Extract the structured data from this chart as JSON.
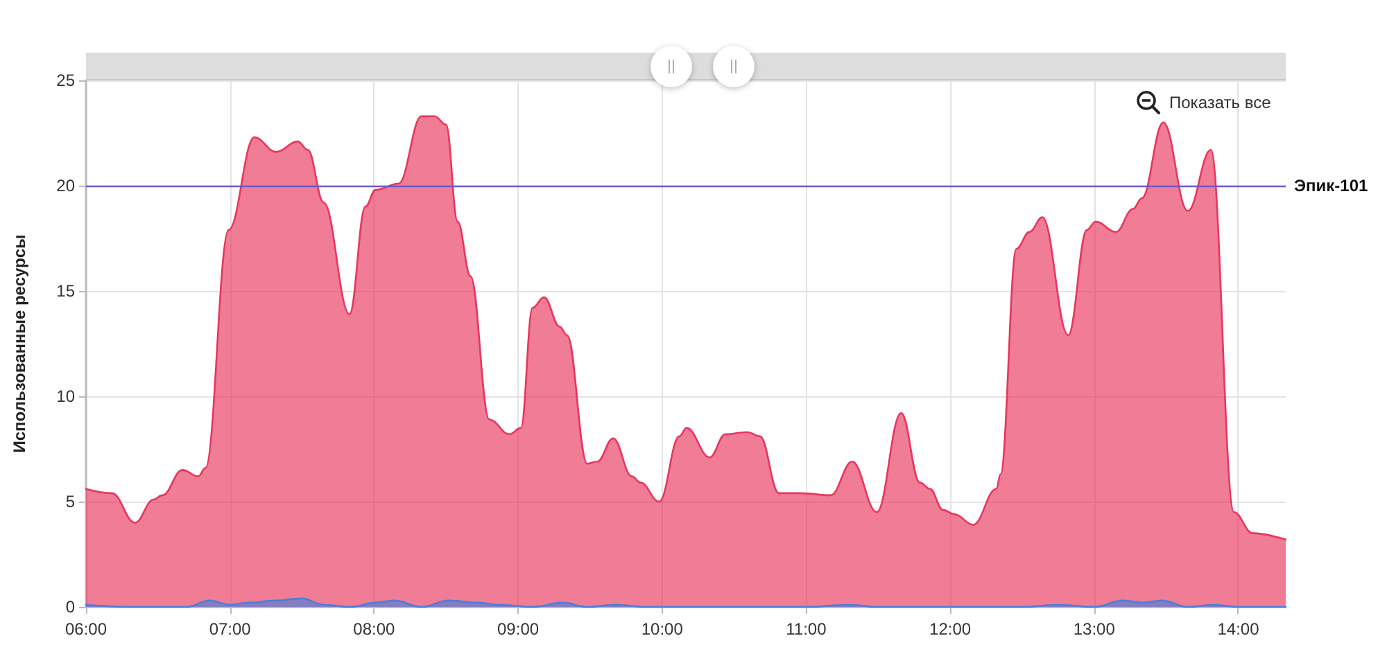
{
  "chart_data": {
    "type": "area",
    "ylabel": "Использованные ресурсы",
    "annotations": [
      "Показать все"
    ],
    "xlim": [
      6,
      14.33
    ],
    "xticks": [
      {
        "value": 6,
        "label": "06:00"
      },
      {
        "value": 7,
        "label": "07:00"
      },
      {
        "value": 8,
        "label": "08:00"
      },
      {
        "value": 9,
        "label": "09:00"
      },
      {
        "value": 10,
        "label": "10:00"
      },
      {
        "value": 11,
        "label": "11:00"
      },
      {
        "value": 12,
        "label": "12:00"
      },
      {
        "value": 13,
        "label": "13:00"
      },
      {
        "value": 14,
        "label": "14:00"
      }
    ],
    "ylim": [
      0,
      25
    ],
    "yticks": [
      0,
      5,
      10,
      15,
      20,
      25
    ],
    "grid": true,
    "marker": "none",
    "ref_lines": [
      {
        "axis": "y",
        "value": 20,
        "label": "Эпик-101",
        "color": "#6a5acd"
      }
    ],
    "series": [
      {
        "color": "#e8365e",
        "x": [
          6.0,
          6.18,
          6.34,
          6.47,
          6.53,
          6.67,
          6.78,
          6.83,
          6.99,
          7.17,
          7.32,
          7.47,
          7.54,
          7.65,
          7.83,
          7.94,
          8.01,
          8.17,
          8.33,
          8.42,
          8.5,
          8.58,
          8.67,
          8.8,
          8.94,
          9.02,
          9.1,
          9.18,
          9.29,
          9.34,
          9.48,
          9.55,
          9.66,
          9.79,
          9.85,
          9.98,
          10.12,
          10.17,
          10.33,
          10.44,
          10.59,
          10.68,
          10.81,
          10.96,
          11.17,
          11.32,
          11.49,
          11.66,
          11.79,
          11.86,
          11.95,
          12.03,
          12.16,
          12.32,
          12.35,
          12.46,
          12.55,
          12.64,
          12.82,
          12.95,
          13.01,
          13.15,
          13.27,
          13.33,
          13.48,
          13.65,
          13.81,
          13.97,
          14.1,
          14.33
        ],
        "values": [
          5.6,
          5.4,
          4.0,
          5.1,
          5.3,
          6.5,
          6.2,
          6.6,
          17.9,
          22.3,
          21.6,
          22.1,
          21.7,
          19.2,
          13.9,
          19.0,
          19.8,
          20.1,
          23.3,
          23.3,
          22.9,
          18.3,
          15.7,
          8.9,
          8.2,
          8.5,
          14.2,
          14.7,
          13.3,
          12.9,
          6.8,
          6.9,
          8.0,
          6.2,
          5.9,
          5.0,
          8.1,
          8.5,
          7.1,
          8.2,
          8.3,
          8.1,
          5.4,
          5.4,
          5.3,
          6.9,
          4.5,
          9.2,
          5.9,
          5.6,
          4.6,
          4.4,
          3.9,
          5.6,
          6.3,
          17.0,
          17.8,
          18.5,
          12.9,
          17.9,
          18.3,
          17.8,
          18.9,
          19.4,
          23.0,
          18.8,
          21.7,
          4.5,
          3.5,
          3.2
        ]
      },
      {
        "color": "#4a7fd9",
        "x": [
          6.0,
          6.3,
          6.7,
          6.86,
          7.0,
          7.13,
          7.32,
          7.5,
          7.65,
          7.84,
          8.01,
          8.14,
          8.33,
          8.52,
          8.71,
          8.87,
          9.1,
          9.31,
          9.48,
          9.67,
          9.9,
          11.0,
          11.3,
          11.5,
          12.5,
          12.75,
          13.0,
          13.2,
          13.34,
          13.47,
          13.65,
          13.83,
          14.0,
          14.33
        ],
        "values": [
          0.1,
          0,
          0,
          0.3,
          0.1,
          0.2,
          0.3,
          0.4,
          0.1,
          0,
          0.2,
          0.3,
          0,
          0.3,
          0.2,
          0.1,
          0,
          0.2,
          0,
          0.1,
          0,
          0,
          0.1,
          0,
          0,
          0.1,
          0,
          0.3,
          0.2,
          0.3,
          0,
          0.1,
          0,
          0
        ]
      }
    ]
  }
}
